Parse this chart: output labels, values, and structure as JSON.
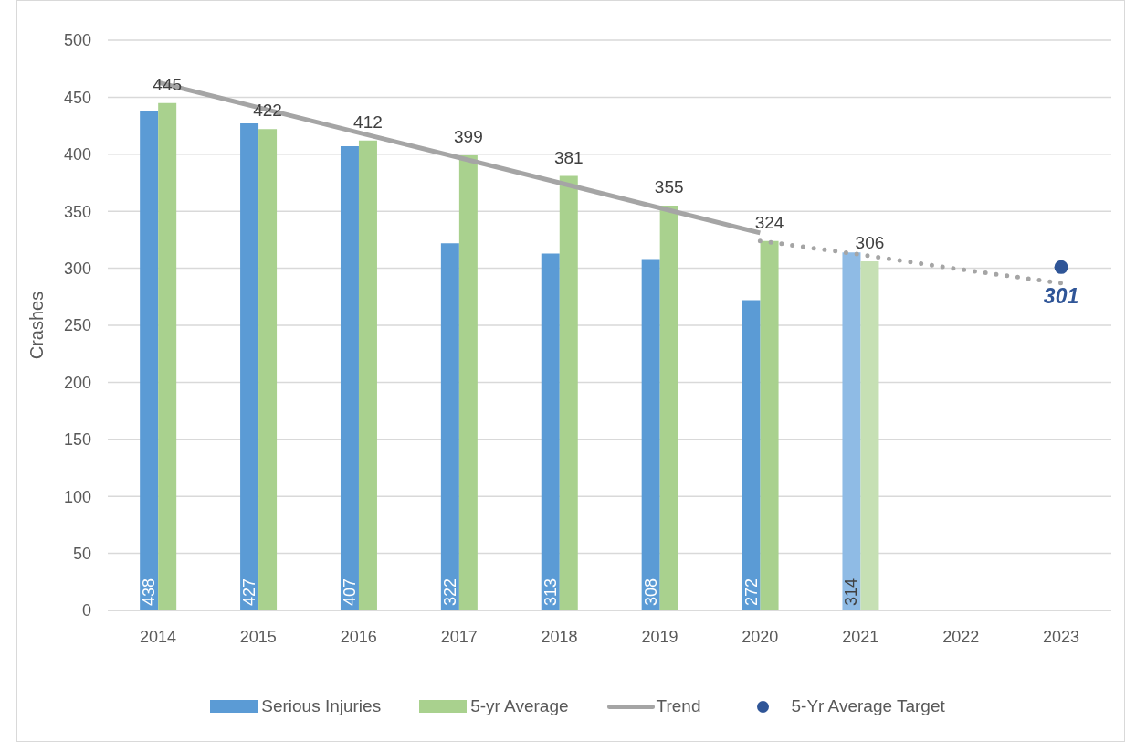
{
  "chart_data": {
    "type": "bar",
    "ylabel": "Crashes",
    "categories": [
      "2014",
      "2015",
      "2016",
      "2017",
      "2018",
      "2019",
      "2020",
      "2021",
      "2022",
      "2023"
    ],
    "series": [
      {
        "name": "Serious Injuries",
        "color": "#5b9bd5",
        "colors": [
          "#5b9bd5",
          "#5b9bd5",
          "#5b9bd5",
          "#5b9bd5",
          "#5b9bd5",
          "#5b9bd5",
          "#5b9bd5",
          "#8fbbe5",
          "#5b9bd5",
          "#5b9bd5"
        ],
        "values": [
          438,
          427,
          407,
          322,
          313,
          308,
          272,
          314,
          null,
          null
        ],
        "value_labels": [
          "438",
          "427",
          "407",
          "322",
          "313",
          "308",
          "272",
          "314",
          null,
          null
        ]
      },
      {
        "name": "5-yr Average",
        "color": "#a9d18e",
        "colors": [
          "#a9d18e",
          "#a9d18e",
          "#a9d18e",
          "#a9d18e",
          "#a9d18e",
          "#a9d18e",
          "#a9d18e",
          "#c6e0b4",
          "#a9d18e",
          "#a9d18e"
        ],
        "values": [
          445,
          422,
          412,
          399,
          381,
          355,
          324,
          306,
          null,
          null
        ],
        "value_labels": [
          "445",
          "422",
          "412",
          "399",
          "381",
          "355",
          "324",
          "306",
          null,
          null
        ]
      },
      {
        "name": "Trend",
        "type": "line",
        "color": "#a5a5a5",
        "values": [
          463,
          441,
          419,
          397,
          375,
          353,
          331,
          null,
          null,
          null
        ],
        "marker": "none",
        "line_style": "solid"
      },
      {
        "type": "line",
        "color": "#a5a5a5",
        "values": [
          null,
          null,
          null,
          null,
          null,
          null,
          324,
          312,
          299,
          287
        ],
        "marker": "none",
        "line_style": "dotted"
      },
      {
        "name": "5-Yr Average Target",
        "type": "scatter",
        "color": "#2f5597",
        "values": [
          null,
          null,
          null,
          null,
          null,
          null,
          null,
          null,
          null,
          301
        ],
        "marker": "circle",
        "value_labels": [
          null,
          null,
          null,
          null,
          null,
          null,
          null,
          null,
          null,
          "301"
        ]
      }
    ],
    "ylim": [
      0,
      500
    ],
    "yticks": [
      0,
      50,
      100,
      150,
      200,
      250,
      300,
      350,
      400,
      450,
      500
    ],
    "grid": "y",
    "legend": "bottom"
  }
}
